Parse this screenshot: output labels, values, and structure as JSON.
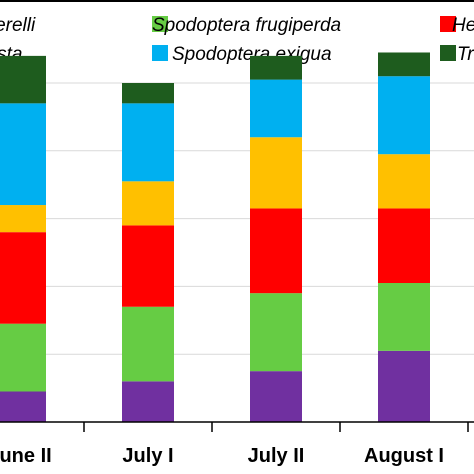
{
  "chart_data": {
    "type": "bar",
    "stacked": true,
    "normalized": true,
    "categories": [
      "June II",
      "July I",
      "July II",
      "August I"
    ],
    "ylim": [
      0,
      1
    ],
    "grid": true,
    "legend_position": "top",
    "series": [
      {
        "name": "",
        "color": "#7030A0",
        "values": [
          0.09,
          0.12,
          0.15,
          0.21
        ]
      },
      {
        "name": "Spodoptera frugiperda",
        "color": "#66CC44",
        "values": [
          0.2,
          0.22,
          0.23,
          0.2
        ]
      },
      {
        "name": "",
        "color": "#FF0000",
        "values": [
          0.27,
          0.24,
          0.25,
          0.22
        ]
      },
      {
        "name": "",
        "color": "#FFC000",
        "values": [
          0.08,
          0.13,
          0.21,
          0.16
        ]
      },
      {
        "name": "Spodoptera exigua",
        "color": "#00B0F0",
        "values": [
          0.3,
          0.23,
          0.17,
          0.23
        ]
      },
      {
        "name": "",
        "color": "#1E5C1E",
        "values": [
          0.14,
          0.06,
          0.07,
          0.07
        ]
      }
    ],
    "legend": [
      {
        "label": "cockerelli",
        "color": "#7030A0"
      },
      {
        "label": "Spodoptera frugiperda",
        "color": "#66CC44"
      },
      {
        "label": "He",
        "color": "#FF0000"
      },
      {
        "label": "lbicosta",
        "color": "#FFC000"
      },
      {
        "label": "Spodoptera exigua",
        "color": "#00B0F0"
      },
      {
        "label": "Tr",
        "color": "#1E5C1E"
      }
    ]
  }
}
